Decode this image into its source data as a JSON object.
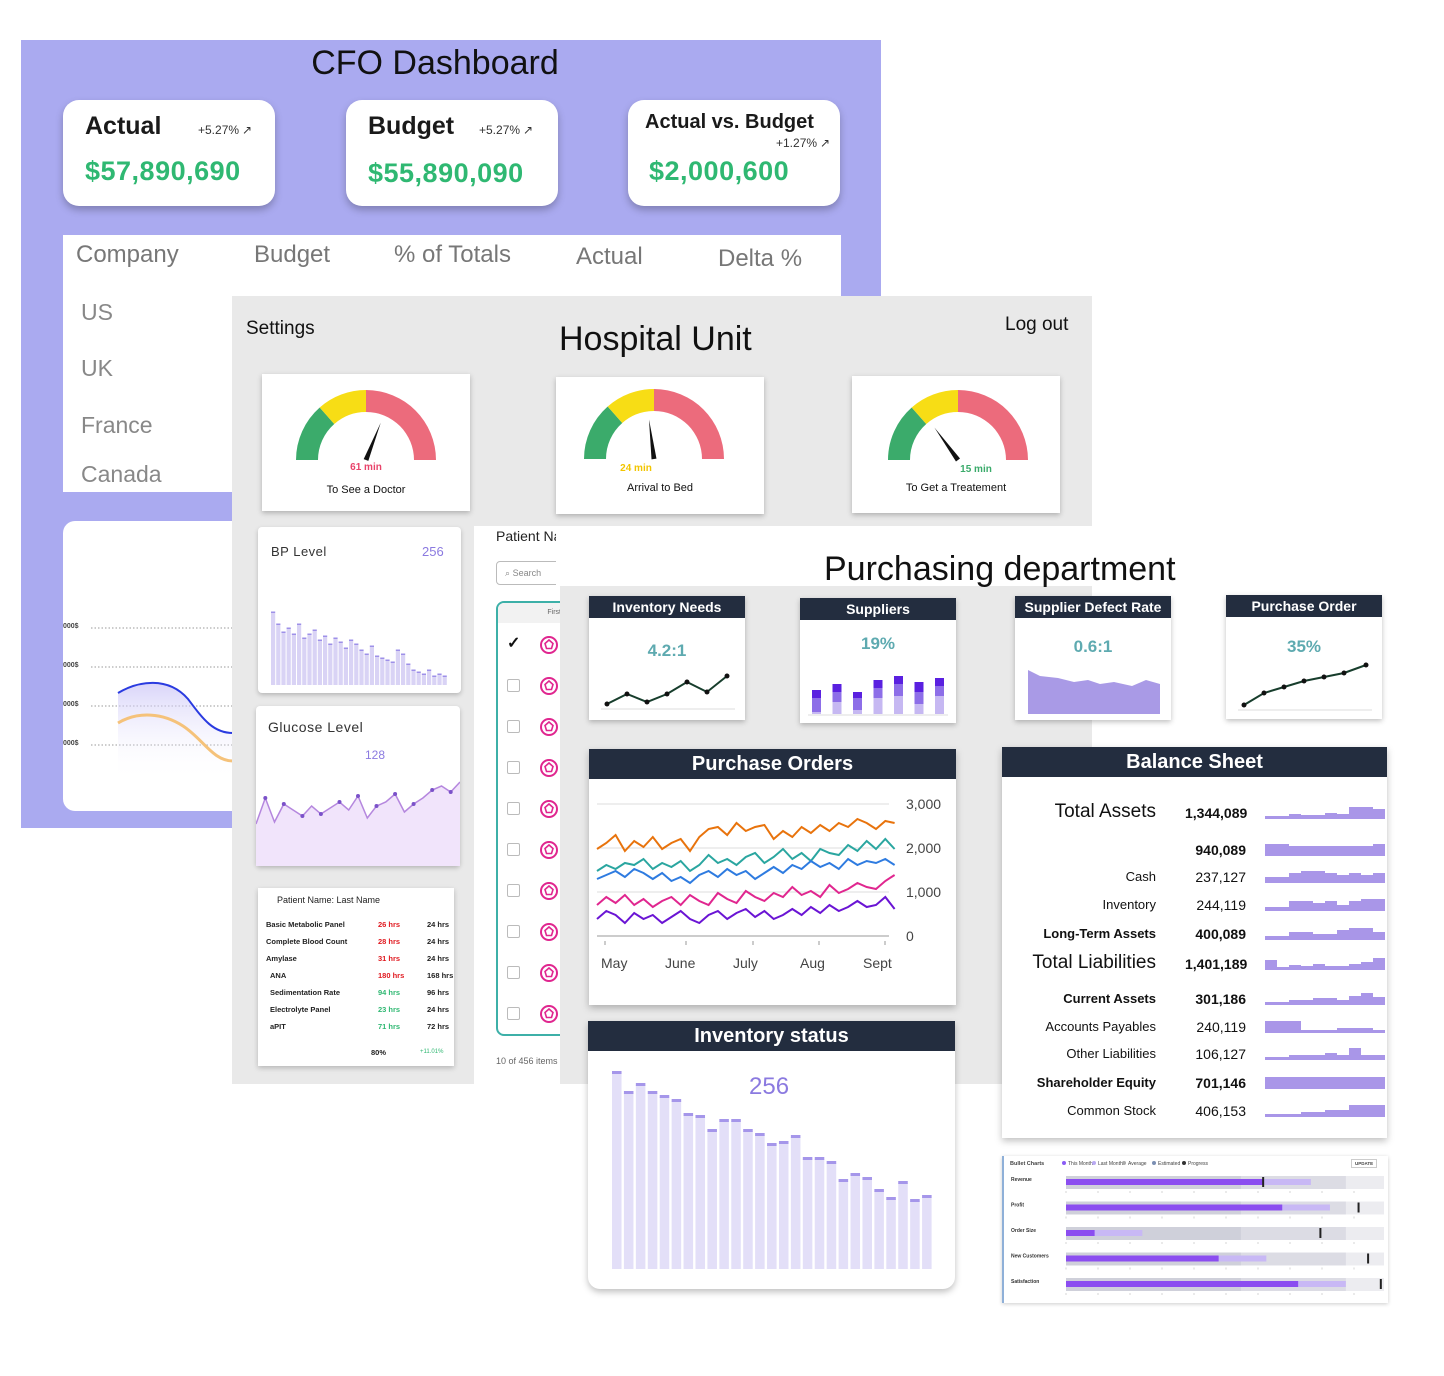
{
  "cfo": {
    "title": "CFO Dashboard",
    "kpis": [
      {
        "label": "Actual",
        "change": "+5.27%",
        "value": "$57,890,690"
      },
      {
        "label": "Budget",
        "change": "+5.27%",
        "value": "$55,890,090"
      },
      {
        "label": "Actual vs. Budget",
        "change": "+1.27%",
        "value": "$2,000,600"
      }
    ],
    "table": {
      "headers": [
        "Company",
        "Budget",
        "% of Totals",
        "Actual",
        "Delta %"
      ],
      "rows": [
        "US",
        "UK",
        "France",
        "Canada"
      ]
    },
    "chart_y_labels": [
      "000$",
      "000$",
      "000$",
      "000$"
    ]
  },
  "hospital": {
    "settings": "Settings",
    "title": "Hospital Unit",
    "logout": "Log out",
    "gauges": [
      {
        "value": "61 min",
        "label": "To See a Doctor",
        "color": "#e8436a",
        "level": 0.62
      },
      {
        "value": "24 min",
        "label": "Arrival to Bed",
        "color": "#f2c500",
        "level": 0.46
      },
      {
        "value": "15 min",
        "label": "To Get a Treatement",
        "color": "#3bab6b",
        "level": 0.3
      }
    ],
    "bp": {
      "label": "BP Level",
      "value": "256"
    },
    "glucose": {
      "label": "Glucose Level",
      "value": "128"
    },
    "labs": {
      "title": "Patient Name: Last Name",
      "rows": [
        {
          "name": "Basic Metabolic Panel",
          "result": "26 hrs",
          "target": "24 hrs",
          "status": "red"
        },
        {
          "name": "Complete Blood Count",
          "result": "28 hrs",
          "target": "24 hrs",
          "status": "red"
        },
        {
          "name": "Amylase",
          "result": "31 hrs",
          "target": "24 hrs",
          "status": "red"
        },
        {
          "name": "ANA",
          "result": "180 hrs",
          "target": "168 hrs",
          "status": "red"
        },
        {
          "name": "Sedimentation Rate",
          "result": "94 hrs",
          "target": "96 hrs",
          "status": "green"
        },
        {
          "name": "Electrolyte Panel",
          "result": "23 hrs",
          "target": "24 hrs",
          "status": "green"
        },
        {
          "name": "aPIT",
          "result": "71 hrs",
          "target": "72 hrs",
          "status": "green"
        }
      ],
      "total": "80%",
      "delta": "+11.01%"
    },
    "patients": {
      "title": "Patient Name",
      "search_placeholder": "Search",
      "column": "First N",
      "footer": "10 of 456 items"
    }
  },
  "purchasing": {
    "title": "Purchasing department",
    "kpis": [
      {
        "title": "Inventory Needs",
        "value": "4.2:1"
      },
      {
        "title": "Suppliers",
        "value": "19%"
      },
      {
        "title": "Supplier Defect Rate",
        "value": "0.6:1"
      },
      {
        "title": "Purchase Order",
        "value": "35%"
      }
    ],
    "orders": {
      "title": "Purchase Orders",
      "months": [
        "May",
        "June",
        "July",
        "Aug",
        "Sept"
      ],
      "yticks": [
        "3,000",
        "2,000",
        "1,000",
        "0"
      ]
    },
    "inventory": {
      "title": "Inventory status",
      "value": "256"
    },
    "balance": {
      "title": "Balance Sheet",
      "rows": [
        {
          "label": "Total Assets",
          "value": "1,344,089",
          "size": "big"
        },
        {
          "label": "",
          "value": "940,089",
          "size": "bold"
        },
        {
          "label": "Cash",
          "value": "237,127",
          "size": "normal"
        },
        {
          "label": "Inventory",
          "value": "244,119",
          "size": "normal"
        },
        {
          "label": "Long-Term Assets",
          "value": "400,089",
          "size": "bold"
        },
        {
          "label": "Total Liabilities",
          "value": "1,401,189",
          "size": "big"
        },
        {
          "label": "Current Assets",
          "value": "301,186",
          "size": "bold"
        },
        {
          "label": "Accounts Payables",
          "value": "240,119",
          "size": "normal"
        },
        {
          "label": "Other Liabilities",
          "value": "106,127",
          "size": "normal"
        },
        {
          "label": "Shareholder Equity",
          "value": "701,146",
          "size": "bold"
        },
        {
          "label": "Common Stock",
          "value": "406,153",
          "size": "normal"
        }
      ]
    },
    "bullet": {
      "title": "Bullet Charts",
      "legend": [
        "This Month",
        "Last Month",
        "Average",
        "Estimated",
        "Progress"
      ],
      "update": "UPDATE",
      "rows": [
        {
          "label": "Revenue",
          "value": 0.62,
          "marker": 0.62
        },
        {
          "label": "Profit",
          "value": 0.68,
          "marker": 0.92
        },
        {
          "label": "Order Size",
          "value": 0.09,
          "marker": 0.8
        },
        {
          "label": "New Customers",
          "value": 0.48,
          "marker": 0.95
        },
        {
          "label": "Satisfaction",
          "value": 0.73,
          "marker": 0.99
        }
      ]
    }
  }
}
